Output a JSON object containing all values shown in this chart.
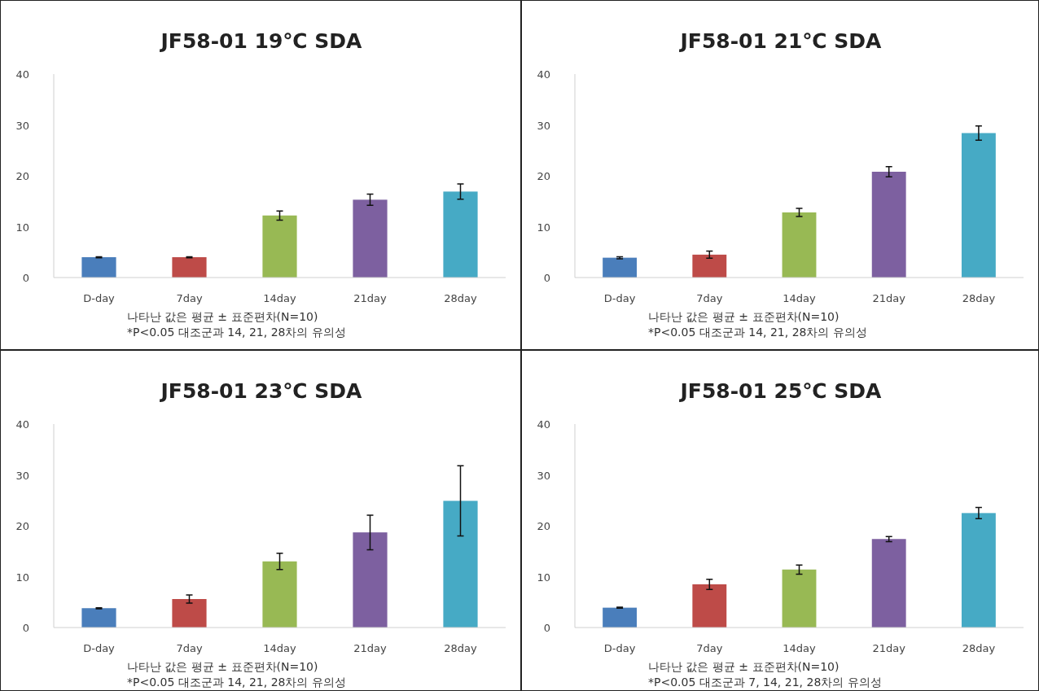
{
  "chart_data": [
    {
      "type": "bar",
      "title": "JF58-01 19℃ SDA",
      "categories": [
        "D-day",
        "7day",
        "14day",
        "21day",
        "28day"
      ],
      "values": [
        4.0,
        4.0,
        12.2,
        15.3,
        16.9
      ],
      "errors": [
        0.1,
        0.1,
        0.9,
        1.1,
        1.5
      ],
      "colors": [
        "#4a7ebb",
        "#be4b48",
        "#98b954",
        "#7d60a0",
        "#46aac5"
      ],
      "ylim": [
        0,
        40
      ],
      "yticks": [
        0,
        10,
        20,
        30,
        40
      ],
      "grid": false,
      "annotations": [
        "나타난 값은 평균 ± 표준편차(N=10)",
        "*P<0.05 대조군과 14, 21, 28차의 유의성"
      ]
    },
    {
      "type": "bar",
      "title": "JF58-01 21℃ SDA",
      "categories": [
        "D-day",
        "7day",
        "14day",
        "21day",
        "28day"
      ],
      "values": [
        3.9,
        4.5,
        12.8,
        20.8,
        28.4
      ],
      "errors": [
        0.2,
        0.7,
        0.8,
        1.0,
        1.4
      ],
      "colors": [
        "#4a7ebb",
        "#be4b48",
        "#98b954",
        "#7d60a0",
        "#46aac5"
      ],
      "ylim": [
        0,
        40
      ],
      "yticks": [
        0,
        10,
        20,
        30,
        40
      ],
      "grid": false,
      "annotations": [
        "나타난 값은 평균 ± 표준편차(N=10)",
        "*P<0.05 대조군과 14, 21, 28차의 유의성"
      ]
    },
    {
      "type": "bar",
      "title": "JF58-01 23℃ SDA",
      "categories": [
        "D-day",
        "7day",
        "14day",
        "21day",
        "28day"
      ],
      "values": [
        3.8,
        5.6,
        13.0,
        18.7,
        24.9
      ],
      "errors": [
        0.1,
        0.8,
        1.6,
        3.4,
        6.9
      ],
      "colors": [
        "#4a7ebb",
        "#be4b48",
        "#98b954",
        "#7d60a0",
        "#46aac5"
      ],
      "ylim": [
        0,
        40
      ],
      "yticks": [
        0,
        10,
        20,
        30,
        40
      ],
      "grid": false,
      "annotations": [
        "나타난 값은 평균 ± 표준편차(N=10)",
        "*P<0.05 대조군과 14, 21, 28차의 유의성"
      ]
    },
    {
      "type": "bar",
      "title": "JF58-01 25℃ SDA",
      "categories": [
        "D-day",
        "7day",
        "14day",
        "21day",
        "28day"
      ],
      "values": [
        3.9,
        8.5,
        11.4,
        17.4,
        22.5
      ],
      "errors": [
        0.1,
        1.0,
        0.9,
        0.5,
        1.1
      ],
      "colors": [
        "#4a7ebb",
        "#be4b48",
        "#98b954",
        "#7d60a0",
        "#46aac5"
      ],
      "ylim": [
        0,
        40
      ],
      "yticks": [
        0,
        10,
        20,
        30,
        40
      ],
      "grid": false,
      "annotations": [
        "나타난 값은 평균 ± 표준편차(N=10)",
        "*P<0.05 대조군과 7, 14, 21, 28차의 유의성"
      ]
    }
  ]
}
